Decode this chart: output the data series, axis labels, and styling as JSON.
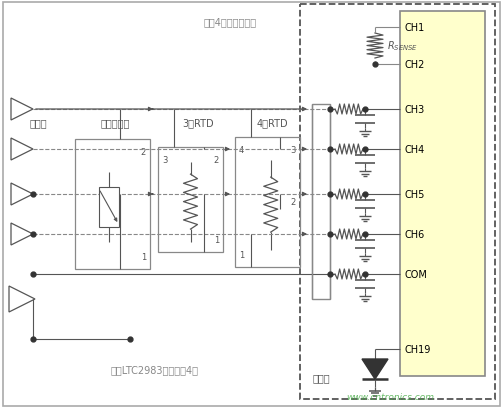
{
  "bg_color": "#ffffff",
  "chip_color": "#ffffcc",
  "ch_labels": [
    "CH1",
    "CH2",
    "CH3",
    "CH4",
    "CH5",
    "CH6",
    "COM",
    "CH19"
  ],
  "text_shared": "所有4组传感器共用",
  "text_groups": "每个LTC2983连接多达4组",
  "label_thermocouple": "热电偶",
  "label_thermistor": "热敏电阻器",
  "label_3rtd": "3线RTD",
  "label_4rtd": "4线RTD",
  "label_cold": "冷接点",
  "watermark": "www.cntronics.com",
  "line_color": "#666666",
  "dash_color": "#555555",
  "text_color": "#888888"
}
